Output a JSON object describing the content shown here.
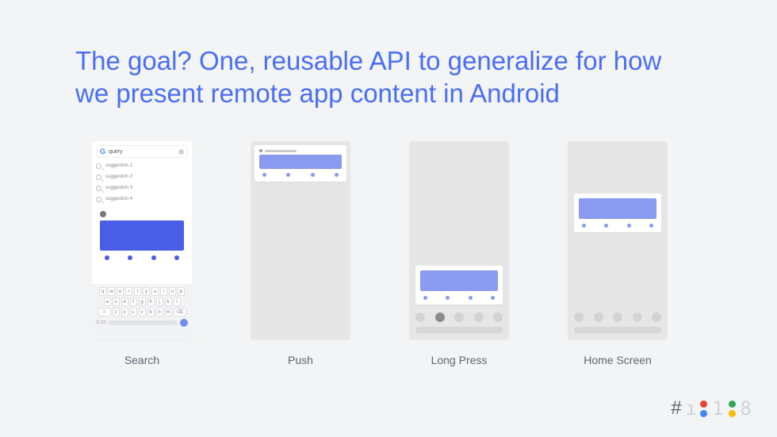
{
  "heading": "The goal? One, reusable API to generalize for how we present remote app content in Android",
  "captions": {
    "search": "Search",
    "push": "Push",
    "longpress": "Long Press",
    "homescreen": "Home Screen"
  },
  "colors": {
    "background": "#f2f4f5",
    "heading": "#4a6ef5",
    "caption_text": "#5f6673",
    "phone_muted_bg": "#e6e6e6",
    "phone_white_bg": "#ffffff",
    "slice_hero_dark": "#4a5de6",
    "slice_hero_light": "#8a9af0",
    "slice_dot_dark": "#4a5de6",
    "slice_dot_light": "#8a9af0",
    "dock_app": "#d3d3d3",
    "dock_app_active": "#8b8b8b",
    "dock_pill": "#d7d7d7",
    "keyboard_bg": "#f2f3f5",
    "key_bg": "#ffffff",
    "key_text": "#7a7f88"
  },
  "search_phone": {
    "query": "query",
    "suggestions": [
      "suggestion 1",
      "suggestion 2",
      "suggestion 3",
      "suggestion 4"
    ],
    "slice": {
      "hero_color": "#4a5de6",
      "dot_color": "#4a5de6",
      "dot_count": 4
    },
    "keyboard": {
      "rows": [
        [
          "q",
          "w",
          "e",
          "r",
          "t",
          "y",
          "u",
          "i",
          "o",
          "p"
        ],
        [
          "a",
          "s",
          "d",
          "f",
          "g",
          "h",
          "j",
          "k",
          "l"
        ],
        [
          "z",
          "x",
          "c",
          "v",
          "b",
          "n",
          "m"
        ]
      ],
      "time": "11:23"
    }
  },
  "push_phone": {
    "slice": {
      "hero_color": "#8a9af0",
      "dot_color": "#8a9af0",
      "dot_count": 4
    }
  },
  "longpress_phone": {
    "slice": {
      "hero_color": "#8a9af0",
      "dot_color": "#8a9af0",
      "dot_count": 4
    },
    "dock": {
      "app_count": 5,
      "active_index": 1
    }
  },
  "homescreen_phone": {
    "slice": {
      "hero_color": "#8a9af0",
      "dot_color": "#8a9af0",
      "dot_count": 4
    },
    "dock": {
      "app_count": 5,
      "active_index": -1
    }
  },
  "logo": {
    "hash": "#",
    "text1": "1",
    "text8": "8",
    "dot_colors": [
      "#EA4335",
      "#4285F4",
      "#34A853",
      "#FBBC05"
    ]
  }
}
